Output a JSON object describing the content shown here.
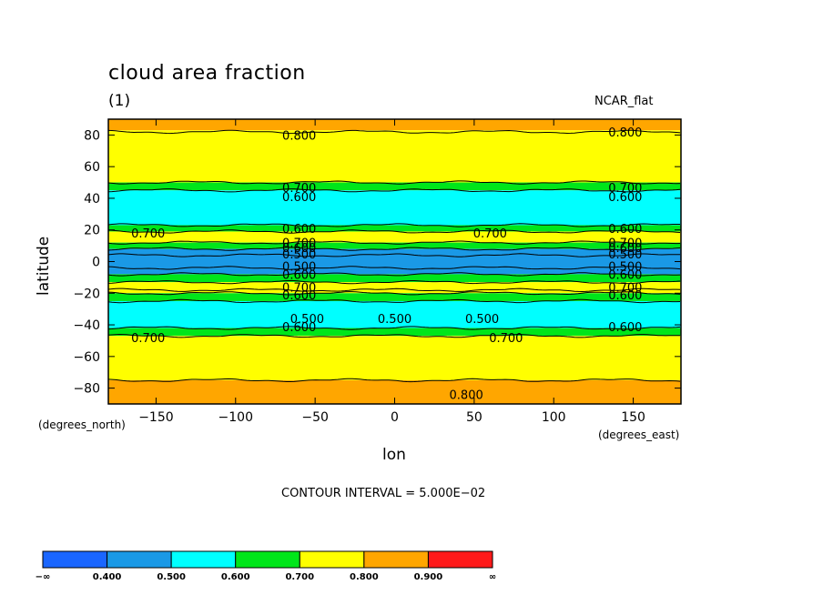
{
  "chart_data": {
    "type": "heatmap",
    "title": "cloud area fraction",
    "units": "(1)",
    "projection_label": "NCAR_flat",
    "xlabel": "lon",
    "ylabel": "latitude",
    "x_units": "(degrees_east)",
    "y_units": "(degrees_north)",
    "xlim": [
      -180,
      180
    ],
    "ylim": [
      -90,
      90
    ],
    "x_ticks": [
      -150,
      -100,
      -50,
      0,
      50,
      100,
      150
    ],
    "x_tick_labels": [
      "−150",
      "−100",
      "−50",
      "0",
      "50",
      "100",
      "150"
    ],
    "y_ticks": [
      80,
      60,
      40,
      20,
      0,
      -20,
      -40,
      -60,
      -80
    ],
    "y_tick_labels": [
      "80",
      "60",
      "40",
      "20",
      "0",
      "−20",
      "−40",
      "−60",
      "−80"
    ],
    "contour_interval_text": "CONTOUR INTERVAL = 5.000E−02",
    "zonal_bands": [
      {
        "lat_from": 90,
        "lat_to": 83,
        "value": 0.82
      },
      {
        "lat_from": 83,
        "lat_to": 50,
        "value": 0.75
      },
      {
        "lat_from": 50,
        "lat_to": 45,
        "value": 0.65
      },
      {
        "lat_from": 45,
        "lat_to": 23,
        "value": 0.55
      },
      {
        "lat_from": 23,
        "lat_to": 19,
        "value": 0.65
      },
      {
        "lat_from": 19,
        "lat_to": 12,
        "value": 0.75
      },
      {
        "lat_from": 12,
        "lat_to": 8,
        "value": 0.65
      },
      {
        "lat_from": 8,
        "lat_to": -8,
        "value": 0.45
      },
      {
        "lat_from": -8,
        "lat_to": -13,
        "value": 0.65
      },
      {
        "lat_from": -13,
        "lat_to": -20,
        "value": 0.75
      },
      {
        "lat_from": -20,
        "lat_to": -25,
        "value": 0.65
      },
      {
        "lat_from": -25,
        "lat_to": -42,
        "value": 0.55
      },
      {
        "lat_from": -42,
        "lat_to": -47,
        "value": 0.65
      },
      {
        "lat_from": -47,
        "lat_to": -75,
        "value": 0.75
      },
      {
        "lat_from": -75,
        "lat_to": -90,
        "value": 0.82
      }
    ],
    "contour_lines_lat": [
      82,
      50,
      45,
      23,
      19,
      12,
      8,
      4,
      -4,
      -8,
      -13,
      -18,
      -20,
      -25,
      -42,
      -47,
      -75
    ],
    "contour_labels": [
      {
        "text": "0.800",
        "lon": -60,
        "lat": 80
      },
      {
        "text": "0.800",
        "lon": 145,
        "lat": 82
      },
      {
        "text": "0.700",
        "lon": -60,
        "lat": 47
      },
      {
        "text": "0.700",
        "lon": 145,
        "lat": 47
      },
      {
        "text": "0.600",
        "lon": -60,
        "lat": 41
      },
      {
        "text": "0.600",
        "lon": 145,
        "lat": 41
      },
      {
        "text": "0.600",
        "lon": -60,
        "lat": 21
      },
      {
        "text": "0.600",
        "lon": 145,
        "lat": 21
      },
      {
        "text": "0.700",
        "lon": -155,
        "lat": 18
      },
      {
        "text": "0.700",
        "lon": 60,
        "lat": 18
      },
      {
        "text": "0.700",
        "lon": -60,
        "lat": 12
      },
      {
        "text": "0.700",
        "lon": 145,
        "lat": 12
      },
      {
        "text": "0.600",
        "lon": -60,
        "lat": 9
      },
      {
        "text": "0.600",
        "lon": 145,
        "lat": 9
      },
      {
        "text": "0.500",
        "lon": -60,
        "lat": 5
      },
      {
        "text": "0.500",
        "lon": 145,
        "lat": 5
      },
      {
        "text": "0.500",
        "lon": -60,
        "lat": -3
      },
      {
        "text": "0.500",
        "lon": 145,
        "lat": -3
      },
      {
        "text": "0.600",
        "lon": -60,
        "lat": -8
      },
      {
        "text": "0.600",
        "lon": 145,
        "lat": -8
      },
      {
        "text": "0.700",
        "lon": -60,
        "lat": -16
      },
      {
        "text": "0.700",
        "lon": 145,
        "lat": -16
      },
      {
        "text": "0.600",
        "lon": -60,
        "lat": -21
      },
      {
        "text": "0.600",
        "lon": 145,
        "lat": -21
      },
      {
        "text": "0.500",
        "lon": -55,
        "lat": -36
      },
      {
        "text": "0.500",
        "lon": 0,
        "lat": -36
      },
      {
        "text": "0.500",
        "lon": 55,
        "lat": -36
      },
      {
        "text": "0.600",
        "lon": -60,
        "lat": -41
      },
      {
        "text": "0.600",
        "lon": 145,
        "lat": -41
      },
      {
        "text": "0.700",
        "lon": -155,
        "lat": -48
      },
      {
        "text": "0.700",
        "lon": 70,
        "lat": -48
      },
      {
        "text": "0.800",
        "lon": 45,
        "lat": -84
      }
    ],
    "colorbar": {
      "colors": [
        "#1a66ff",
        "#1a99e6",
        "#00ffff",
        "#00e61a",
        "#ffff00",
        "#ffa600",
        "#ff1a1a"
      ],
      "tick_labels": [
        "−∞",
        "0.400",
        "0.500",
        "0.600",
        "0.700",
        "0.800",
        "0.900",
        "∞"
      ]
    }
  }
}
